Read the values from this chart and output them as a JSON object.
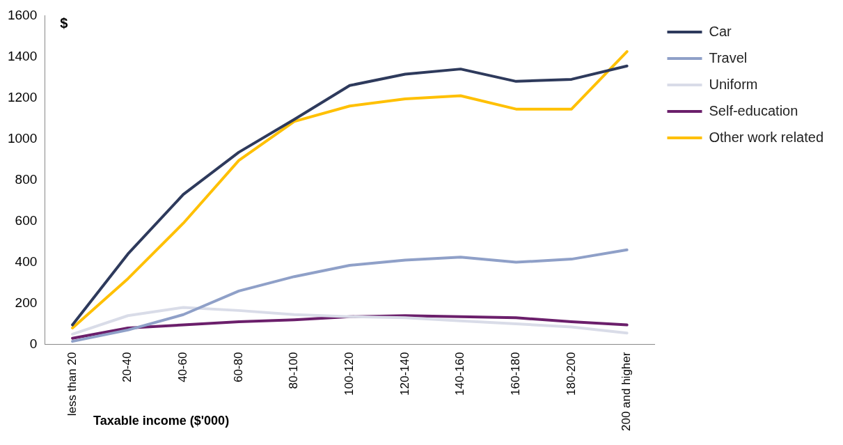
{
  "chart_data": {
    "type": "line",
    "ylabel": "$",
    "xlabel": "Taxable income ($'000)",
    "categories": [
      "less than 20",
      "20-40",
      "40-60",
      "60-80",
      "80-100",
      "100-120",
      "120-140",
      "140-160",
      "160-180",
      "180-200",
      "200 and higher"
    ],
    "series": [
      {
        "name": "Car",
        "color": "#2e3a5c",
        "values": [
          95,
          440,
          730,
          935,
          1095,
          1260,
          1315,
          1340,
          1280,
          1290,
          1355
        ]
      },
      {
        "name": "Travel",
        "color": "#8fa0c8",
        "values": [
          15,
          70,
          145,
          260,
          330,
          385,
          410,
          425,
          400,
          415,
          460
        ]
      },
      {
        "name": "Uniform",
        "color": "#d9dce8",
        "values": [
          50,
          140,
          180,
          165,
          145,
          135,
          130,
          115,
          100,
          85,
          55
        ]
      },
      {
        "name": "Self-education",
        "color": "#6b1f6b",
        "values": [
          30,
          80,
          95,
          110,
          120,
          135,
          140,
          135,
          130,
          110,
          95
        ]
      },
      {
        "name": "Other work related",
        "color": "#ffc000",
        "values": [
          80,
          320,
          590,
          895,
          1085,
          1160,
          1195,
          1210,
          1145,
          1145,
          1425
        ]
      }
    ],
    "ylim": [
      0,
      1600
    ],
    "yticks": [
      0,
      200,
      400,
      600,
      800,
      1000,
      1200,
      1400,
      1600
    ],
    "grid": false,
    "legend": "right",
    "marker": "none",
    "line_style": "solid"
  }
}
